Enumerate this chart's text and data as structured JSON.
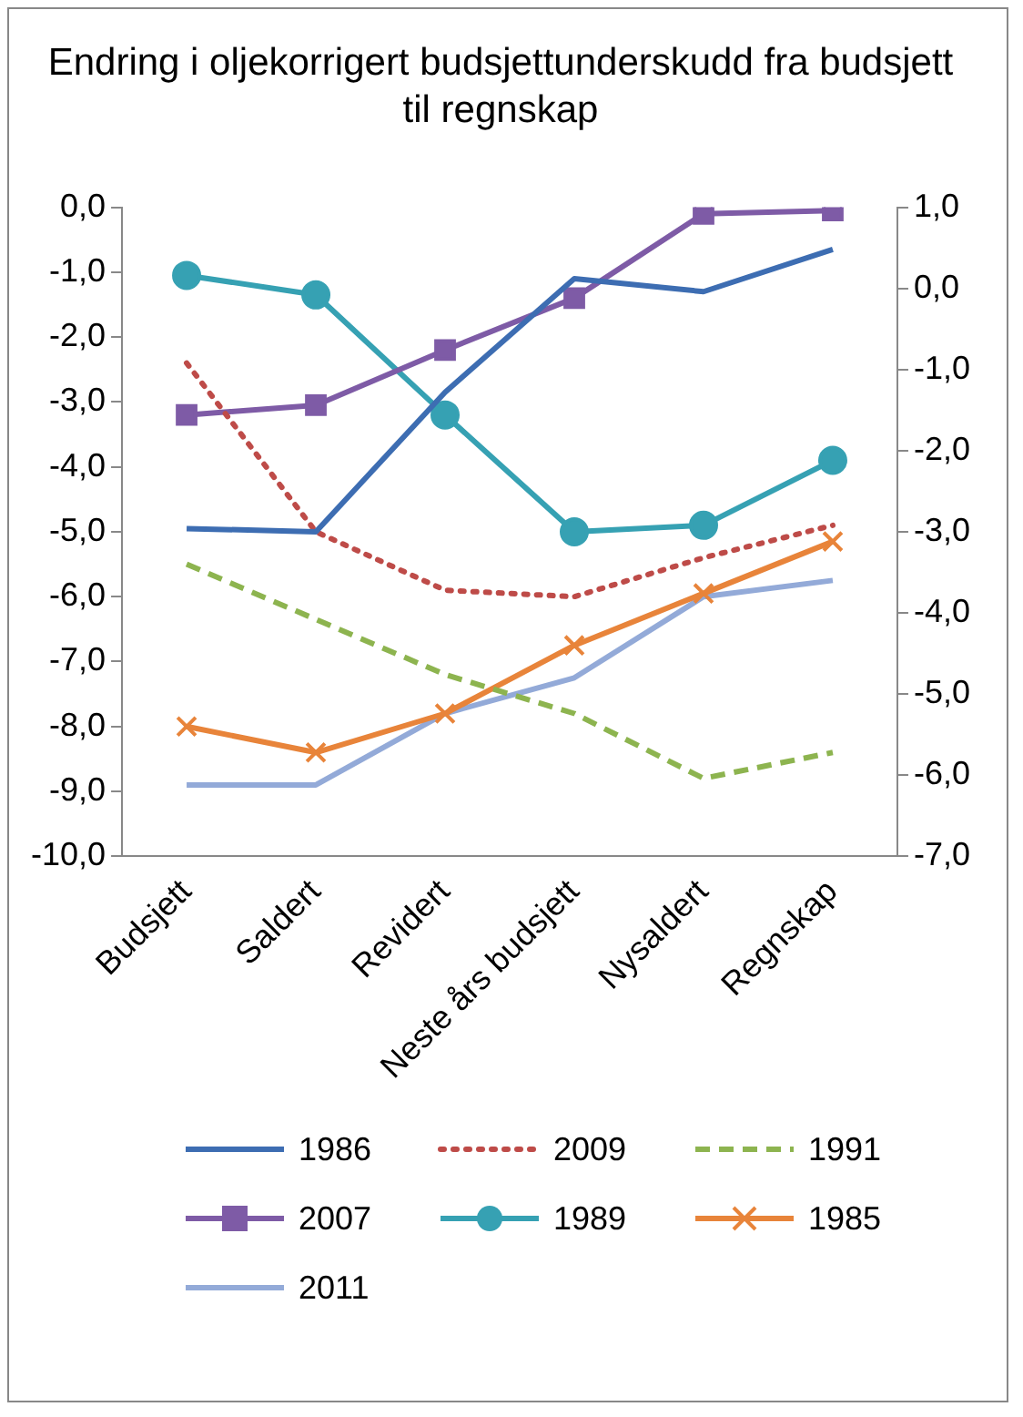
{
  "chart_data": {
    "type": "line",
    "title": "Endring i oljekorrigert budsjettunderskudd fra budsjett til regnskap",
    "categories": [
      "Budsjett",
      "Saldert",
      "Revidert",
      "Neste års budsjett",
      "Nysaldert",
      "Regnskap"
    ],
    "series": [
      {
        "name": "1986",
        "color": "#3d6db2",
        "values": [
          -4.95,
          -5.0,
          -2.85,
          -1.1,
          -1.3,
          -0.65
        ]
      },
      {
        "name": "2009",
        "color": "#be4b48",
        "line_style": "dotted",
        "values": [
          -2.4,
          -5.0,
          -5.9,
          -6.0,
          -5.4,
          -4.9
        ]
      },
      {
        "name": "1991",
        "color": "#8db44f",
        "line_style": "dashed",
        "values": [
          -5.5,
          -6.35,
          -7.2,
          -7.8,
          -8.8,
          -8.4
        ]
      },
      {
        "name": "2007",
        "color": "#7e5ba6",
        "marker": "square",
        "values": [
          -3.2,
          -3.05,
          -2.2,
          -1.4,
          -0.1,
          -0.05
        ]
      },
      {
        "name": "1989",
        "color": "#36a1b3",
        "marker": "circle",
        "values": [
          -1.05,
          -1.35,
          -3.2,
          -5.0,
          -4.9,
          -3.9
        ]
      },
      {
        "name": "1985",
        "color": "#e8843a",
        "marker": "cross",
        "values": [
          -8.0,
          -8.4,
          -7.8,
          -6.75,
          -5.95,
          -5.15
        ]
      },
      {
        "name": "2011",
        "color": "#93aad8",
        "values": [
          -8.9,
          -8.9,
          -7.8,
          -7.25,
          -6.0,
          -5.75
        ]
      }
    ],
    "ylim": [
      -10,
      0
    ],
    "yticks": [
      {
        "value": 0,
        "label": "0,0"
      },
      {
        "value": -1,
        "label": "-1,0"
      },
      {
        "value": -2,
        "label": "-2,0"
      },
      {
        "value": -3,
        "label": "-3,0"
      },
      {
        "value": -4,
        "label": "-4,0"
      },
      {
        "value": -5,
        "label": "-5,0"
      },
      {
        "value": -6,
        "label": "-6,0"
      },
      {
        "value": -7,
        "label": "-7,0"
      },
      {
        "value": -8,
        "label": "-8,0"
      },
      {
        "value": -9,
        "label": "-9,0"
      },
      {
        "value": -10,
        "label": "-10,0"
      }
    ],
    "y2lim": [
      -7,
      1
    ],
    "y2ticks": [
      {
        "value": 1,
        "label": "1,0"
      },
      {
        "value": 0,
        "label": "0,0"
      },
      {
        "value": -1,
        "label": "-1,0"
      },
      {
        "value": -2,
        "label": "-2,0"
      },
      {
        "value": -3,
        "label": "-3,0"
      },
      {
        "value": -4,
        "label": "-4,0"
      },
      {
        "value": -5,
        "label": "-5,0"
      },
      {
        "value": -6,
        "label": "-6,0"
      },
      {
        "value": -7,
        "label": "-7,0"
      }
    ],
    "grid": false,
    "legend": "bottom"
  }
}
